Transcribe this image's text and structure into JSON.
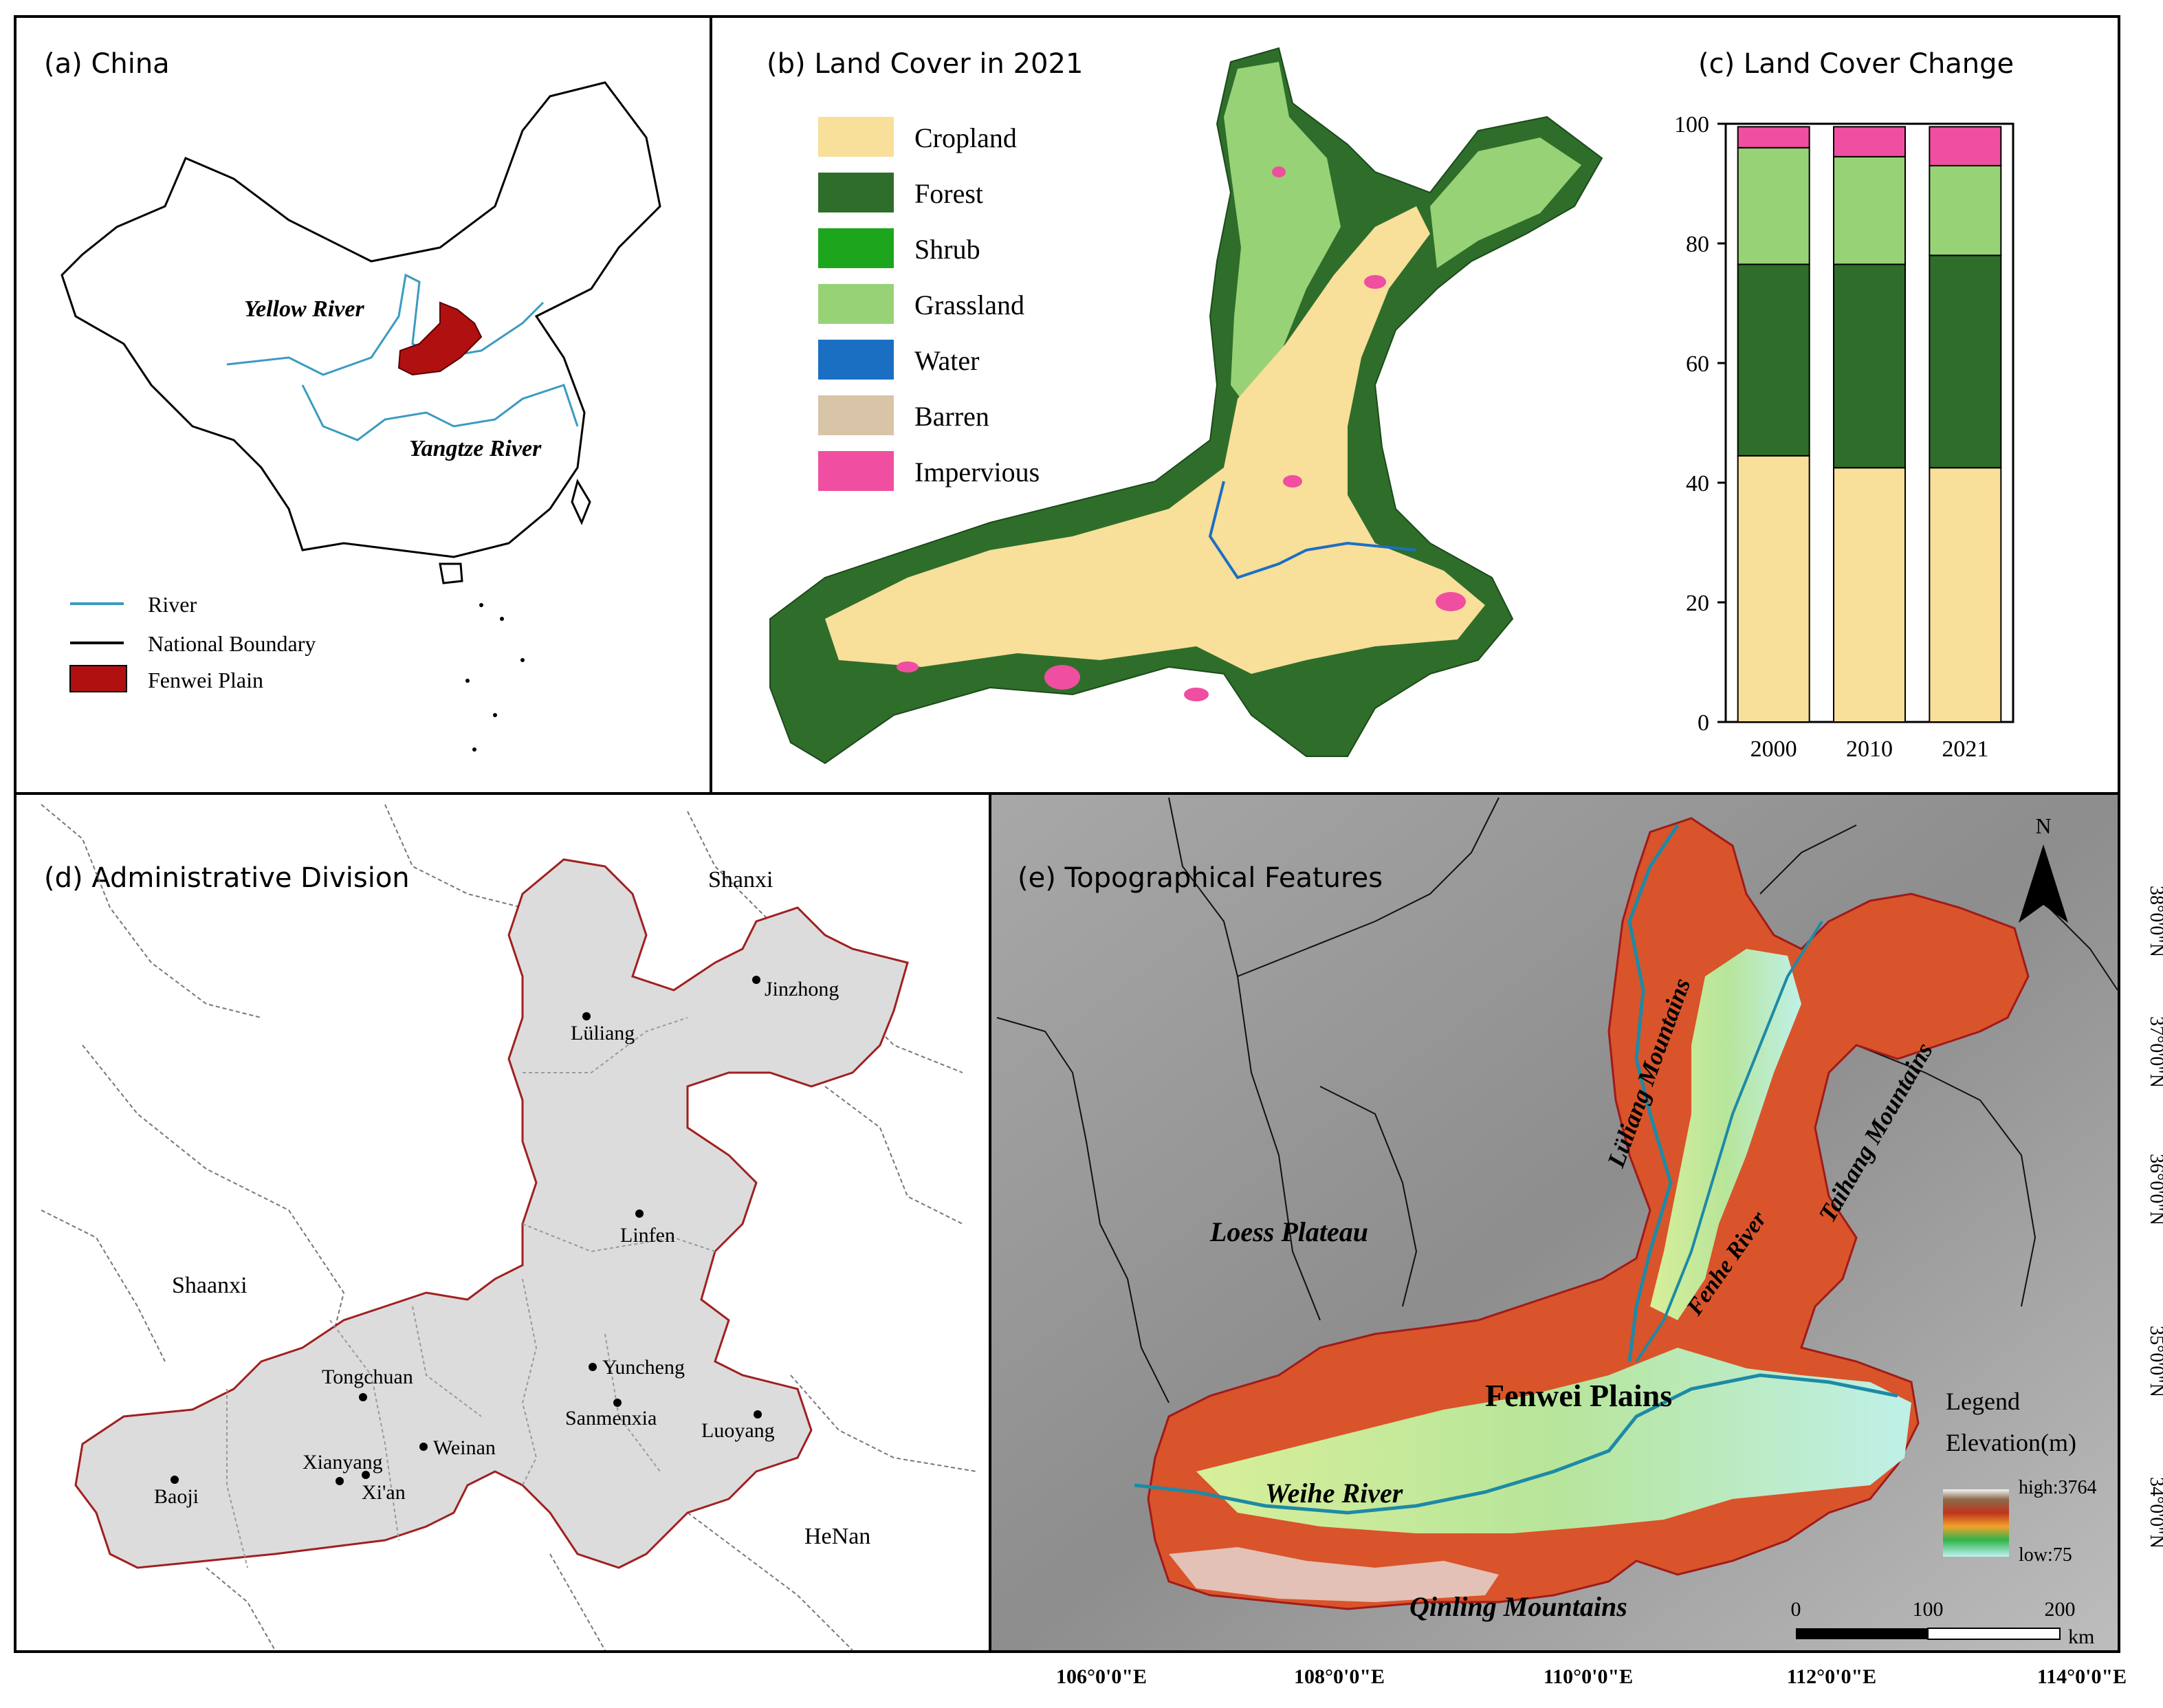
{
  "panels": {
    "a": {
      "title": "(a) China",
      "labels": {
        "yellow_river": "Yellow River",
        "yangtze_river": "Yangtze River"
      },
      "legend": [
        {
          "label": "River",
          "color": "#3a9bc0",
          "symbol": "line"
        },
        {
          "label": "National Boundary",
          "color": "#000000",
          "symbol": "line"
        },
        {
          "label": "Fenwei Plain",
          "color": "#b01010",
          "symbol": "box"
        }
      ]
    },
    "b": {
      "title": "(b) Land Cover in 2021",
      "legend": [
        {
          "label": "Cropland",
          "color": "#f8df9a"
        },
        {
          "label": "Forest",
          "color": "#2e6e2a"
        },
        {
          "label": "Shrub",
          "color": "#1ea51e"
        },
        {
          "label": "Grassland",
          "color": "#98d277"
        },
        {
          "label": "Water",
          "color": "#1b6fc2"
        },
        {
          "label": "Barren",
          "color": "#d8c4a6"
        },
        {
          "label": "Impervious",
          "color": "#f04ea0"
        }
      ]
    },
    "c": {
      "title": "(c) Land Cover Change",
      "chart_data": {
        "type": "bar",
        "stacked": true,
        "categories": [
          "2000",
          "2010",
          "2021"
        ],
        "ylim": [
          0,
          100
        ],
        "yticks": [
          "0",
          "20",
          "40",
          "60",
          "80",
          "100"
        ],
        "series": [
          {
            "name": "Cropland",
            "color": "#f8df9a",
            "values": [
              44.5,
              42.5,
              42.5
            ]
          },
          {
            "name": "Forest",
            "color": "#2e6e2a",
            "values": [
              32.0,
              34.0,
              35.5
            ]
          },
          {
            "name": "Grassland",
            "color": "#98d277",
            "values": [
              19.5,
              18.0,
              15.0
            ]
          },
          {
            "name": "Impervious",
            "color": "#f04ea0",
            "values": [
              3.5,
              5.0,
              6.5
            ]
          }
        ]
      }
    },
    "d": {
      "title": "(d) Administrative Division",
      "provinces": {
        "shanxi": "Shanxi",
        "shaanxi": "Shaanxi",
        "henan": "HeNan"
      },
      "cities": {
        "jinzhong": "Jinzhong",
        "luliang": "Lüliang",
        "linfen": "Linfen",
        "yuncheng": "Yuncheng",
        "sanmenxia": "Sanmenxia",
        "luoyang": "Luoyang",
        "tongchuan": "Tongchuan",
        "weinan": "Weinan",
        "xianyang": "Xianyang",
        "xian": "Xi'an",
        "baoji": "Baoji"
      }
    },
    "e": {
      "title": "(e) Topographical Features",
      "labels": {
        "luliang_mountains": "Lüliang Mountains",
        "taihang_mountains": "Taihang Mountains",
        "loess_plateau": "Loess Plateau",
        "fenhe_river": "Fenhe River",
        "fenwei_plains": "Fenwei Plains",
        "weihe_river": "Weihe River",
        "qinling_mountains": "Qinling Mountains"
      },
      "north_label": "N",
      "legend_title": "Legend",
      "legend_subtitle": "Elevation(m)",
      "legend_high": "high:3764",
      "legend_low": "low:75",
      "scale": {
        "ticks": [
          "0",
          "100",
          "200"
        ],
        "unit": "km"
      },
      "lat_labels": [
        "38°0'0\"N",
        "37°0'0\"N",
        "36°0'0\"N",
        "35°0'0\"N",
        "34°0'0\"N"
      ],
      "lon_labels": [
        "106°0'0\"E",
        "108°0'0\"E",
        "110°0'0\"E",
        "112°0'0\"E",
        "114°0'0\"E"
      ]
    }
  }
}
